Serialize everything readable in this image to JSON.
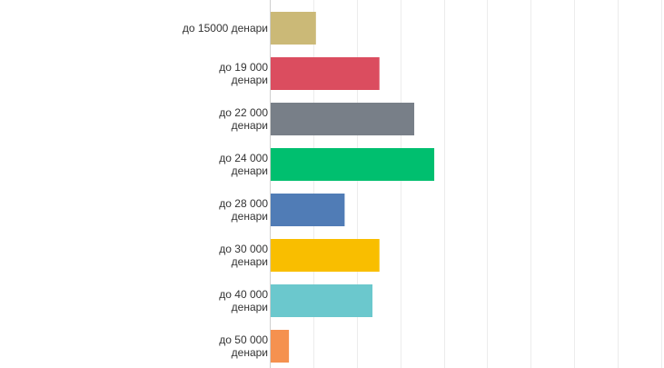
{
  "chart_data": {
    "type": "bar",
    "orientation": "horizontal",
    "title": "",
    "xlabel": "",
    "ylabel": "",
    "xlim": [
      0,
      45
    ],
    "grid": true,
    "categories": [
      [
        "до 15000 денари"
      ],
      [
        "до 19 000",
        "денари"
      ],
      [
        "до 22 000",
        "денари"
      ],
      [
        "до 24 000",
        "денари"
      ],
      [
        "до 28 000",
        "денари"
      ],
      [
        "до 30 000",
        "денари"
      ],
      [
        "до 40 000",
        "денари"
      ],
      [
        "до 50 000",
        "денари"
      ]
    ],
    "values": [
      5.2,
      12.5,
      16.5,
      18.8,
      8.5,
      12.5,
      11.7,
      2.1
    ],
    "colors": [
      "#CBB977",
      "#DB4D5F",
      "#787F88",
      "#00BF6F",
      "#507CB6",
      "#F9BE00",
      "#6BC8CD",
      "#F5914F"
    ]
  }
}
